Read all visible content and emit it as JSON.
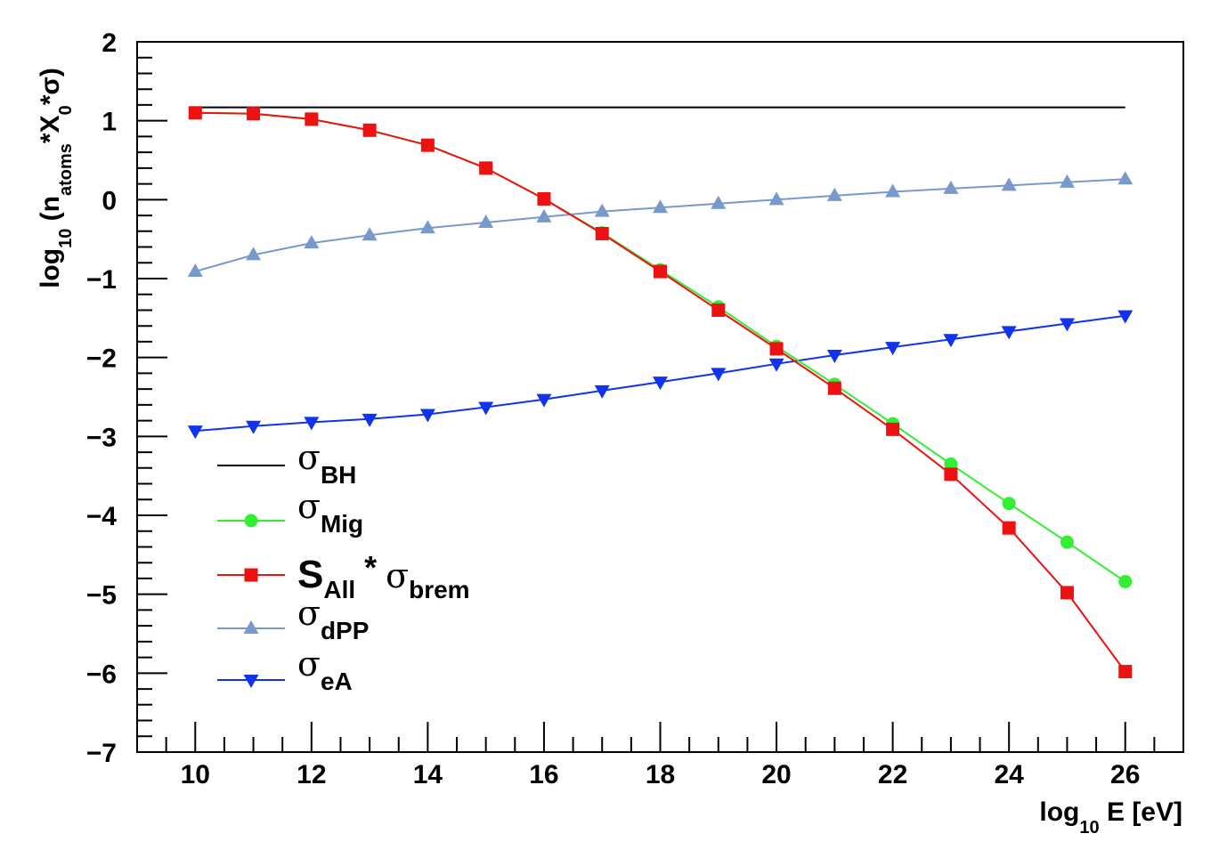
{
  "chart_data": {
    "type": "line",
    "xlabel": {
      "main": "log",
      "sub": "10",
      "rest": " E [eV]"
    },
    "ylabel": {
      "p1": "log",
      "s1": "10",
      "p2": " (n",
      "s2": "atoms",
      "p3": "*X",
      "s3": "0",
      "p4": "*σ)"
    },
    "xlim": [
      9,
      27
    ],
    "ylim": [
      -7,
      2
    ],
    "x_ticks": [
      "10",
      "12",
      "14",
      "16",
      "18",
      "20",
      "22",
      "24",
      "26"
    ],
    "y_ticks": [
      "2",
      "1",
      "0",
      "−1",
      "−2",
      "−3",
      "−4",
      "−5",
      "−6",
      "−7"
    ],
    "x": [
      10,
      11,
      12,
      13,
      14,
      15,
      16,
      17,
      18,
      19,
      20,
      21,
      22,
      23,
      24,
      25,
      26
    ],
    "series": [
      {
        "key": "bh",
        "color": "#000000",
        "marker": "none",
        "x": [
          10,
          26
        ],
        "values": [
          1.17,
          1.17
        ]
      },
      {
        "key": "mig",
        "color": "#33ee33",
        "marker": "circle",
        "values": [
          1.1,
          1.09,
          1.02,
          0.88,
          0.69,
          0.4,
          0.01,
          -0.42,
          -0.89,
          -1.36,
          -1.86,
          -2.34,
          -2.84,
          -3.35,
          -3.85,
          -4.34,
          -4.84
        ]
      },
      {
        "key": "all",
        "color": "#ee1111",
        "marker": "square",
        "values": [
          1.1,
          1.09,
          1.02,
          0.88,
          0.69,
          0.4,
          0.01,
          -0.43,
          -0.91,
          -1.4,
          -1.89,
          -2.39,
          -2.91,
          -3.48,
          -4.16,
          -4.98,
          -5.98
        ]
      },
      {
        "key": "dpp",
        "color": "#7799cc",
        "marker": "triangle-up",
        "values": [
          -0.91,
          -0.7,
          -0.55,
          -0.45,
          -0.36,
          -0.29,
          -0.22,
          -0.15,
          -0.1,
          -0.05,
          0.0,
          0.05,
          0.1,
          0.14,
          0.18,
          0.22,
          0.26
        ]
      },
      {
        "key": "ea",
        "color": "#1133ee",
        "marker": "triangle-down",
        "values": [
          -2.93,
          -2.87,
          -2.82,
          -2.78,
          -2.72,
          -2.63,
          -2.53,
          -2.42,
          -2.31,
          -2.2,
          -2.08,
          -1.97,
          -1.87,
          -1.77,
          -1.67,
          -1.57,
          -1.47
        ]
      }
    ],
    "legend": {
      "placement": "bottom-left",
      "entries": [
        {
          "key": "bh",
          "sym": "σ",
          "sub": "BH"
        },
        {
          "key": "mig",
          "sym": "σ",
          "sub": "Mig"
        },
        {
          "key": "all",
          "pre": "S",
          "presub": "All",
          "mid": " * ",
          "sym": "σ",
          "sub": "brem"
        },
        {
          "key": "dpp",
          "sym": "σ",
          "sub": "dPP"
        },
        {
          "key": "ea",
          "sym": "σ",
          "sub": "eA"
        }
      ]
    },
    "grid": false
  }
}
